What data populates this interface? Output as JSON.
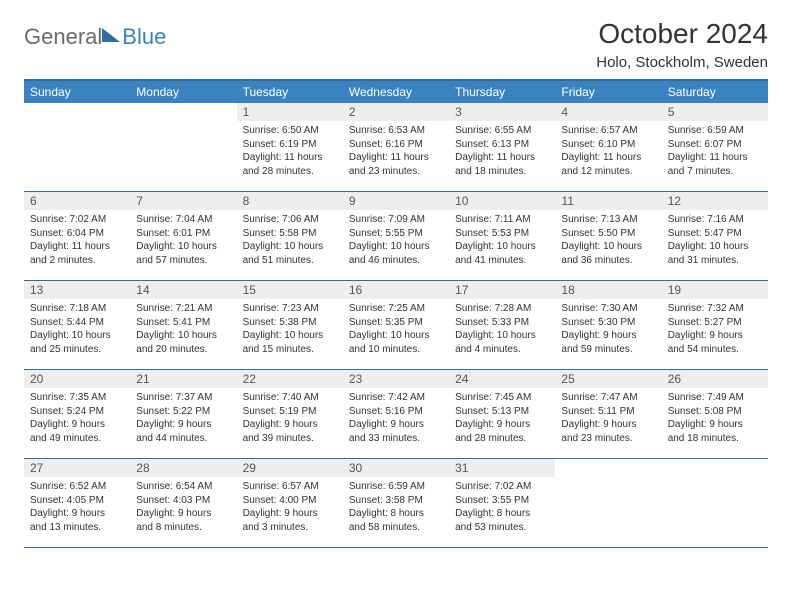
{
  "brand": {
    "general": "General",
    "blue": "Blue"
  },
  "header": {
    "month_title": "October 2024",
    "location": "Holo, Stockholm, Sweden"
  },
  "colors": {
    "accent": "#3b83c0",
    "accent_dark": "#2e6da4",
    "day_bg": "#eeeeee",
    "text": "#333333"
  },
  "weekdays": [
    "Sunday",
    "Monday",
    "Tuesday",
    "Wednesday",
    "Thursday",
    "Friday",
    "Saturday"
  ],
  "weeks": [
    [
      {
        "n": "",
        "sunrise": "",
        "sunset": "",
        "daylight": ""
      },
      {
        "n": "",
        "sunrise": "",
        "sunset": "",
        "daylight": ""
      },
      {
        "n": "1",
        "sunrise": "Sunrise: 6:50 AM",
        "sunset": "Sunset: 6:19 PM",
        "daylight": "Daylight: 11 hours and 28 minutes."
      },
      {
        "n": "2",
        "sunrise": "Sunrise: 6:53 AM",
        "sunset": "Sunset: 6:16 PM",
        "daylight": "Daylight: 11 hours and 23 minutes."
      },
      {
        "n": "3",
        "sunrise": "Sunrise: 6:55 AM",
        "sunset": "Sunset: 6:13 PM",
        "daylight": "Daylight: 11 hours and 18 minutes."
      },
      {
        "n": "4",
        "sunrise": "Sunrise: 6:57 AM",
        "sunset": "Sunset: 6:10 PM",
        "daylight": "Daylight: 11 hours and 12 minutes."
      },
      {
        "n": "5",
        "sunrise": "Sunrise: 6:59 AM",
        "sunset": "Sunset: 6:07 PM",
        "daylight": "Daylight: 11 hours and 7 minutes."
      }
    ],
    [
      {
        "n": "6",
        "sunrise": "Sunrise: 7:02 AM",
        "sunset": "Sunset: 6:04 PM",
        "daylight": "Daylight: 11 hours and 2 minutes."
      },
      {
        "n": "7",
        "sunrise": "Sunrise: 7:04 AM",
        "sunset": "Sunset: 6:01 PM",
        "daylight": "Daylight: 10 hours and 57 minutes."
      },
      {
        "n": "8",
        "sunrise": "Sunrise: 7:06 AM",
        "sunset": "Sunset: 5:58 PM",
        "daylight": "Daylight: 10 hours and 51 minutes."
      },
      {
        "n": "9",
        "sunrise": "Sunrise: 7:09 AM",
        "sunset": "Sunset: 5:55 PM",
        "daylight": "Daylight: 10 hours and 46 minutes."
      },
      {
        "n": "10",
        "sunrise": "Sunrise: 7:11 AM",
        "sunset": "Sunset: 5:53 PM",
        "daylight": "Daylight: 10 hours and 41 minutes."
      },
      {
        "n": "11",
        "sunrise": "Sunrise: 7:13 AM",
        "sunset": "Sunset: 5:50 PM",
        "daylight": "Daylight: 10 hours and 36 minutes."
      },
      {
        "n": "12",
        "sunrise": "Sunrise: 7:16 AM",
        "sunset": "Sunset: 5:47 PM",
        "daylight": "Daylight: 10 hours and 31 minutes."
      }
    ],
    [
      {
        "n": "13",
        "sunrise": "Sunrise: 7:18 AM",
        "sunset": "Sunset: 5:44 PM",
        "daylight": "Daylight: 10 hours and 25 minutes."
      },
      {
        "n": "14",
        "sunrise": "Sunrise: 7:21 AM",
        "sunset": "Sunset: 5:41 PM",
        "daylight": "Daylight: 10 hours and 20 minutes."
      },
      {
        "n": "15",
        "sunrise": "Sunrise: 7:23 AM",
        "sunset": "Sunset: 5:38 PM",
        "daylight": "Daylight: 10 hours and 15 minutes."
      },
      {
        "n": "16",
        "sunrise": "Sunrise: 7:25 AM",
        "sunset": "Sunset: 5:35 PM",
        "daylight": "Daylight: 10 hours and 10 minutes."
      },
      {
        "n": "17",
        "sunrise": "Sunrise: 7:28 AM",
        "sunset": "Sunset: 5:33 PM",
        "daylight": "Daylight: 10 hours and 4 minutes."
      },
      {
        "n": "18",
        "sunrise": "Sunrise: 7:30 AM",
        "sunset": "Sunset: 5:30 PM",
        "daylight": "Daylight: 9 hours and 59 minutes."
      },
      {
        "n": "19",
        "sunrise": "Sunrise: 7:32 AM",
        "sunset": "Sunset: 5:27 PM",
        "daylight": "Daylight: 9 hours and 54 minutes."
      }
    ],
    [
      {
        "n": "20",
        "sunrise": "Sunrise: 7:35 AM",
        "sunset": "Sunset: 5:24 PM",
        "daylight": "Daylight: 9 hours and 49 minutes."
      },
      {
        "n": "21",
        "sunrise": "Sunrise: 7:37 AM",
        "sunset": "Sunset: 5:22 PM",
        "daylight": "Daylight: 9 hours and 44 minutes."
      },
      {
        "n": "22",
        "sunrise": "Sunrise: 7:40 AM",
        "sunset": "Sunset: 5:19 PM",
        "daylight": "Daylight: 9 hours and 39 minutes."
      },
      {
        "n": "23",
        "sunrise": "Sunrise: 7:42 AM",
        "sunset": "Sunset: 5:16 PM",
        "daylight": "Daylight: 9 hours and 33 minutes."
      },
      {
        "n": "24",
        "sunrise": "Sunrise: 7:45 AM",
        "sunset": "Sunset: 5:13 PM",
        "daylight": "Daylight: 9 hours and 28 minutes."
      },
      {
        "n": "25",
        "sunrise": "Sunrise: 7:47 AM",
        "sunset": "Sunset: 5:11 PM",
        "daylight": "Daylight: 9 hours and 23 minutes."
      },
      {
        "n": "26",
        "sunrise": "Sunrise: 7:49 AM",
        "sunset": "Sunset: 5:08 PM",
        "daylight": "Daylight: 9 hours and 18 minutes."
      }
    ],
    [
      {
        "n": "27",
        "sunrise": "Sunrise: 6:52 AM",
        "sunset": "Sunset: 4:05 PM",
        "daylight": "Daylight: 9 hours and 13 minutes."
      },
      {
        "n": "28",
        "sunrise": "Sunrise: 6:54 AM",
        "sunset": "Sunset: 4:03 PM",
        "daylight": "Daylight: 9 hours and 8 minutes."
      },
      {
        "n": "29",
        "sunrise": "Sunrise: 6:57 AM",
        "sunset": "Sunset: 4:00 PM",
        "daylight": "Daylight: 9 hours and 3 minutes."
      },
      {
        "n": "30",
        "sunrise": "Sunrise: 6:59 AM",
        "sunset": "Sunset: 3:58 PM",
        "daylight": "Daylight: 8 hours and 58 minutes."
      },
      {
        "n": "31",
        "sunrise": "Sunrise: 7:02 AM",
        "sunset": "Sunset: 3:55 PM",
        "daylight": "Daylight: 8 hours and 53 minutes."
      },
      {
        "n": "",
        "sunrise": "",
        "sunset": "",
        "daylight": ""
      },
      {
        "n": "",
        "sunrise": "",
        "sunset": "",
        "daylight": ""
      }
    ]
  ]
}
